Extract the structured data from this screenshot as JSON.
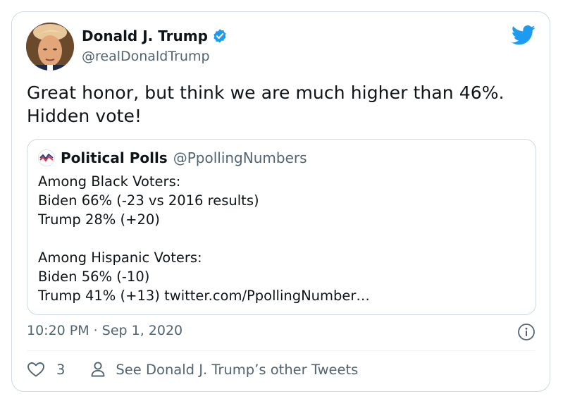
{
  "tweet": {
    "author_name": "Donald J. Trump",
    "author_handle": "@realDonaldTrump",
    "text_lines": [
      "Great honor, but think we are much higher than 46%.",
      "Hidden vote!"
    ],
    "timestamp": "10:20 PM · Sep 1, 2020",
    "like_count": "3",
    "other_tweets_label": "See Donald J. Trump’s other Tweets"
  },
  "quoted_tweet": {
    "author_name": "Political Polls",
    "author_handle": "@PpollingNumbers",
    "lines": [
      "Among Black Voters:",
      "Biden 66% (-23 vs 2016 results)",
      "Trump 28% (+20)",
      "",
      "Among Hispanic Voters:",
      "Biden 56% (-10)",
      "Trump 41% (+13) twitter.com/PpollingNumber…"
    ]
  },
  "icons": {
    "brand": "twitter-bird-icon",
    "verified": "verified-badge-icon",
    "info": "info-icon",
    "like": "heart-icon",
    "profile": "person-icon"
  },
  "colors": {
    "twitter_blue": "#1d9bf0",
    "text": "#0f1419",
    "secondary_text": "#536471",
    "border": "#cfd9de"
  }
}
